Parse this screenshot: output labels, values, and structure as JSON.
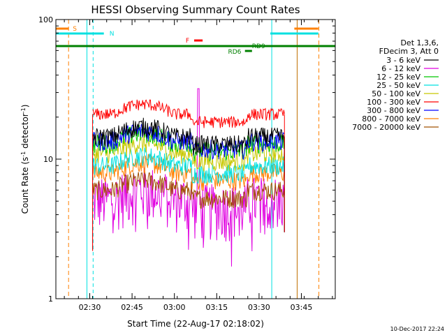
{
  "chart_data": {
    "type": "line",
    "title": "HESSI Observing Summary Count Rates",
    "xlabel": "Start Time (22-Aug-17 02:18:02)",
    "ylabel_main": "Count Rate (s",
    "ylabel_sup": "-1",
    "ylabel_tail": " detector",
    "ylabel_close": ")",
    "y_scale": "log",
    "ylim": [
      1,
      100
    ],
    "xlim_minutes": [
      "02:18",
      "03:57"
    ],
    "x_ticks": [
      "02:30",
      "02:45",
      "03:00",
      "03:15",
      "03:30",
      "03:45"
    ],
    "y_ticks": [
      "1",
      "10",
      "100"
    ],
    "legend_header": [
      "Det 1,3,6,",
      "FDecim 3, Att 0"
    ],
    "legend_placement": "right",
    "series": [
      {
        "name": "3 - 6 keV",
        "color": "#000000",
        "level": 14.5
      },
      {
        "name": "6 - 12 keV",
        "color": "#e000e0",
        "level": 5.2
      },
      {
        "name": "12 - 25 keV",
        "color": "#00c800",
        "level": 13.0
      },
      {
        "name": "25 - 50 keV",
        "color": "#00e0e0",
        "level": 9.0
      },
      {
        "name": "50 - 100 keV",
        "color": "#c8c800",
        "level": 11.0
      },
      {
        "name": "100 - 300 keV",
        "color": "#ff0000",
        "level": 21.0
      },
      {
        "name": "300 - 800 keV",
        "color": "#0000ff",
        "level": 13.5
      },
      {
        "name": "800 - 7000 keV",
        "color": "#ff8000",
        "level": 8.0
      },
      {
        "name": "7000 - 20000 keV",
        "color": "#a05000",
        "level": 6.0
      }
    ],
    "flags": [
      {
        "label": "S",
        "color": "#ff8000"
      },
      {
        "label": "N",
        "color": "#00e0e0"
      },
      {
        "label": "F",
        "color": "#ff0000"
      },
      {
        "label": "RD9",
        "color": "#008000"
      },
      {
        "label": "RD6",
        "color": "#008000"
      }
    ]
  },
  "footer": {
    "timestamp": "10-Dec-2017 22:24"
  }
}
